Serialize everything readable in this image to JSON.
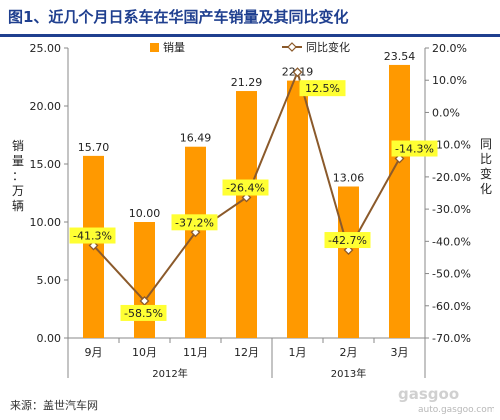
{
  "header": {
    "title": "图1、近几个月日系车在华国产车销量及其同比变化"
  },
  "footer": {
    "source": "来源：盖世汽车网"
  },
  "watermark": {
    "text": "gasgoo",
    "url": "auto.gasgoo.com"
  },
  "colors": {
    "bar": "#ff9900",
    "line": "#8b5a2b",
    "label_bg": "#ffff33",
    "title": "#1f3f8f"
  },
  "chart_data": {
    "type": "bar",
    "categories": [
      "9月",
      "10月",
      "11月",
      "12月",
      "1月",
      "2月",
      "3月"
    ],
    "year_groups": [
      {
        "label": "2012年",
        "categories": [
          "9月",
          "10月",
          "11月",
          "12月"
        ]
      },
      {
        "label": "2013年",
        "categories": [
          "1月",
          "2月",
          "3月"
        ]
      }
    ],
    "series": [
      {
        "name": "销量",
        "type": "bar",
        "axis": "left",
        "values": [
          15.7,
          10.0,
          16.49,
          21.29,
          22.19,
          13.06,
          23.54
        ],
        "labels": [
          "15.70",
          "10.00",
          "16.49",
          "21.29",
          "22.19",
          "13.06",
          "23.54"
        ]
      },
      {
        "name": "同比变化",
        "type": "line",
        "axis": "right",
        "values": [
          -41.3,
          -58.5,
          -37.2,
          -26.4,
          12.5,
          -42.7,
          -14.3
        ],
        "labels": [
          "-41.3%",
          "-58.5%",
          "-37.2%",
          "-26.4%",
          "12.5%",
          "-42.7%",
          "-14.3%"
        ]
      }
    ],
    "y_left": {
      "label": "销量：万辆",
      "min": 0,
      "max": 25,
      "ticks": [
        "0.00",
        "5.00",
        "10.00",
        "15.00",
        "20.00",
        "25.00"
      ]
    },
    "y_right": {
      "label": "同比变化",
      "min": -70,
      "max": 20,
      "ticks": [
        "20.0%",
        "10.0%",
        "0.0%",
        "-10.0%",
        "-20.0%",
        "-30.0%",
        "-40.0%",
        "-50.0%",
        "-60.0%",
        "-70.0%"
      ]
    },
    "legend_position": "top",
    "grid": false
  }
}
